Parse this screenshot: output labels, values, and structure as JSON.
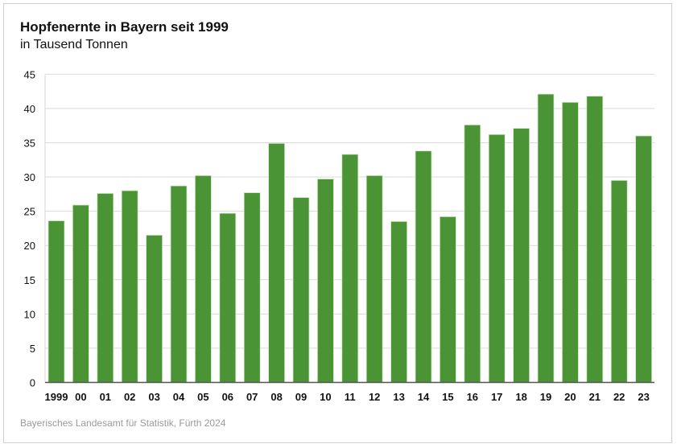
{
  "chart_data": {
    "type": "bar",
    "title": "Hopfenernte in Bayern seit 1999",
    "subtitle": "in Tausend Tonnen",
    "source": "Bayerisches Landesamt für Statistik, Fürth 2024",
    "categories": [
      "1999",
      "00",
      "01",
      "02",
      "03",
      "04",
      "05",
      "06",
      "07",
      "08",
      "09",
      "10",
      "11",
      "12",
      "13",
      "14",
      "15",
      "16",
      "17",
      "18",
      "19",
      "20",
      "21",
      "22",
      "23"
    ],
    "values": [
      23.6,
      25.9,
      27.6,
      28.0,
      21.5,
      28.7,
      30.2,
      24.7,
      27.7,
      34.9,
      27.0,
      29.7,
      33.3,
      30.2,
      23.5,
      33.8,
      24.2,
      37.6,
      36.2,
      37.1,
      42.1,
      40.9,
      41.8,
      29.5,
      36.0
    ],
    "ylim": [
      0,
      45
    ],
    "yticks": [
      0,
      5,
      10,
      15,
      20,
      25,
      30,
      35,
      40,
      45
    ],
    "grid": true,
    "bar_color": "#4a9436",
    "xlabel": "",
    "ylabel": ""
  }
}
